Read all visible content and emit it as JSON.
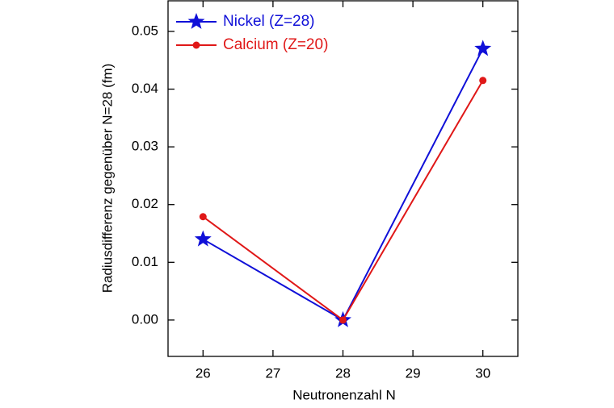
{
  "chart_data": {
    "type": "line",
    "x_label": "Neutronenzahl N",
    "y_label": "Radiusdifferenz gegenüber N=28 (fm)",
    "x": [
      26,
      28,
      30
    ],
    "series": [
      {
        "name": "Nickel (Z=28)",
        "color": "#1010d8",
        "marker": "star",
        "values": [
          0.014,
          0,
          0.047
        ]
      },
      {
        "name": "Calcium (Z=20)",
        "color": "#e01818",
        "marker": "circle",
        "values": [
          0.0179,
          0,
          0.0415
        ]
      }
    ],
    "xlim": [
      25.5,
      30.5
    ],
    "xticks": [
      26,
      27,
      28,
      29,
      30
    ],
    "ylim": [
      -0.0063,
      0.0553
    ],
    "yticks": [
      {
        "value": 0,
        "label": "0.00"
      },
      0.01,
      0.02,
      0.03,
      0.04,
      0.05
    ],
    "legend": "upper-left"
  }
}
